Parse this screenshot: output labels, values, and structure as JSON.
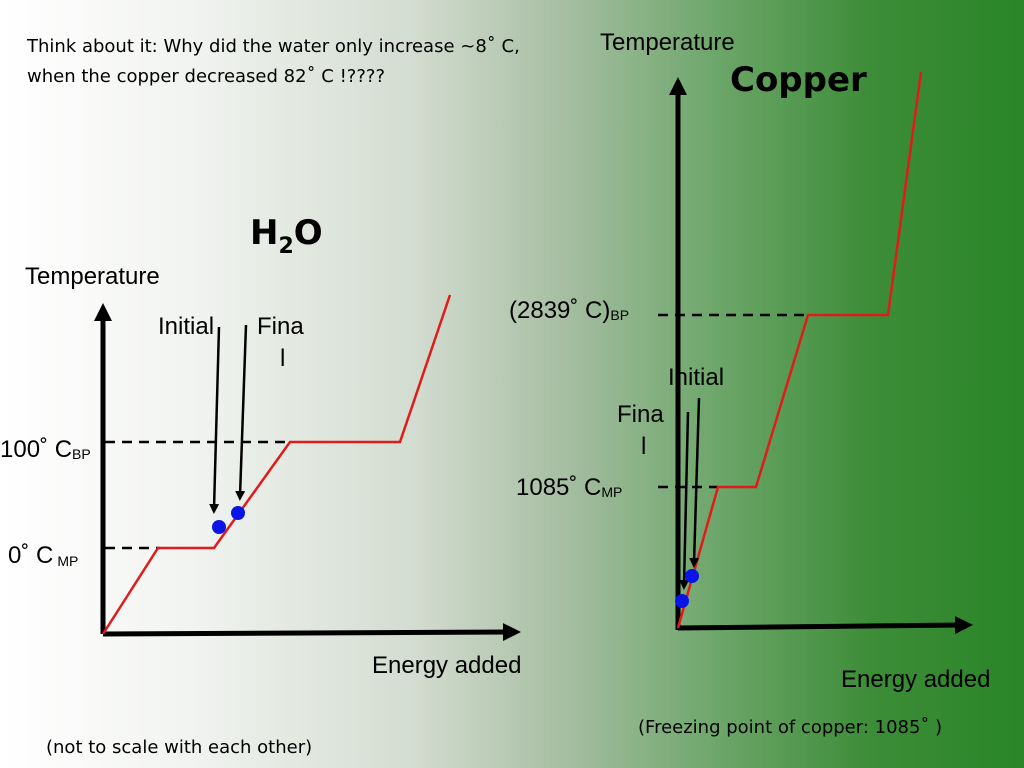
{
  "note": {
    "line1": "Think about it: Why did the water only increase ~8˚ C,",
    "line2": "when the copper decreased 82˚ C !????"
  },
  "water": {
    "title_main": "H",
    "title_sub": "2",
    "title_end": "O",
    "y_axis_label": "Temperature",
    "x_axis_label": "Energy added",
    "initial_label": "Initial",
    "final_label_1": "Fina",
    "final_label_2": "l",
    "bp_label": "100˚ C",
    "bp_sub": "BP",
    "mp_label": "0˚ C",
    "mp_sub": "MP"
  },
  "copper": {
    "title": "Copper",
    "y_axis_label": "Temperature",
    "x_axis_label": "Energy added",
    "initial_label": "Initial",
    "final_label_1": "Fina",
    "final_label_2": "l",
    "bp_label": "(2839˚ C)",
    "bp_sub": "BP",
    "mp_label": "1085˚ C",
    "mp_sub": "MP",
    "footnote": "(Freezing point of copper: 1085˚ )"
  },
  "footnote": "(not to scale with each other)",
  "colors": {
    "curve": "#e11b1b",
    "dot": "#0a14e6",
    "background_left": "#ffffff",
    "background_right": "#2a8528"
  }
}
